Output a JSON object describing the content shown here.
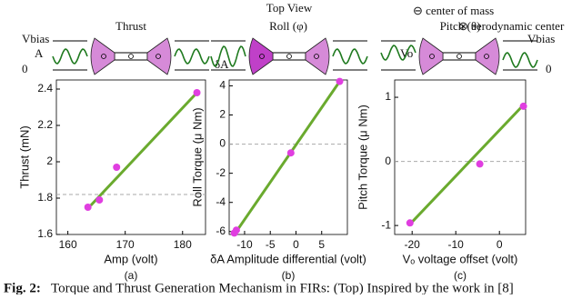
{
  "diagram": {
    "top_view": "Top View",
    "center_of_mass": "⊖ center of mass",
    "aerodynamic_center": "⊗ aerodynamic center",
    "v_bias_left": "Vbias",
    "amp": "A",
    "zero_left": "0",
    "delta_a": "δA",
    "v_o": "Vo",
    "v_bias_right": "Vbias",
    "zero_right": "0"
  },
  "caption": {
    "label": "Fig. 2:",
    "text": "Torque and Thrust Generation Mechanism in FIRs: (Top) Inspired by the work in [8]"
  },
  "chart_data": [
    {
      "type": "scatter",
      "title": "Thrust",
      "xlabel": "Amp (volt)",
      "ylabel": "Thrust (mN)",
      "sublabel": "(a)",
      "xlim": [
        158,
        184
      ],
      "xticks": [
        160,
        170,
        180
      ],
      "ylim": [
        1.6,
        2.45
      ],
      "yticks": [
        1.6,
        1.8,
        2,
        2.2,
        2.4
      ],
      "x": [
        163.5,
        165.5,
        168.5,
        182.5
      ],
      "values": [
        1.75,
        1.79,
        1.97,
        2.38
      ],
      "color": "#e03ee0",
      "fit": {
        "x": [
          164,
          182.5
        ],
        "values": [
          1.76,
          2.38
        ],
        "color": "#6aaa2e"
      },
      "hline": 1.82
    },
    {
      "type": "scatter",
      "title": "Roll (φ)",
      "xlabel": "δA Amplitude differential (volt)",
      "ylabel": "Roll Torque (μ Nm)",
      "sublabel": "(b)",
      "xlim": [
        -13,
        10
      ],
      "xticks": [
        -10,
        -5,
        0,
        5
      ],
      "ylim": [
        -6.2,
        4.4
      ],
      "yticks": [
        -6,
        -4,
        -2,
        0,
        2,
        4
      ],
      "x": [
        -12,
        -11.6,
        -1,
        8.5
      ],
      "values": [
        -6.1,
        -5.9,
        -0.6,
        4.3
      ],
      "color": "#e03ee0",
      "fit": {
        "x": [
          -12,
          8.5
        ],
        "values": [
          -6.2,
          4.3
        ],
        "color": "#6aaa2e"
      },
      "hline": 0
    },
    {
      "type": "scatter",
      "title": "Pitch (θ)",
      "xlabel": "Vₒ voltage offset (volt)",
      "ylabel": "Pitch Torque (μ Nm)",
      "sublabel": "(c)",
      "xlim": [
        -24,
        6
      ],
      "xticks": [
        -20,
        -10,
        0
      ],
      "ylim": [
        -1.14,
        1.27
      ],
      "yticks": [
        -1,
        0,
        1
      ],
      "x": [
        -20.5,
        -4.5,
        5.5
      ],
      "values": [
        -0.96,
        -0.04,
        0.86
      ],
      "color": "#e03ee0",
      "fit": {
        "x": [
          -20.5,
          5.5
        ],
        "values": [
          -0.98,
          0.88
        ],
        "color": "#6aaa2e"
      },
      "hline": 0
    }
  ]
}
